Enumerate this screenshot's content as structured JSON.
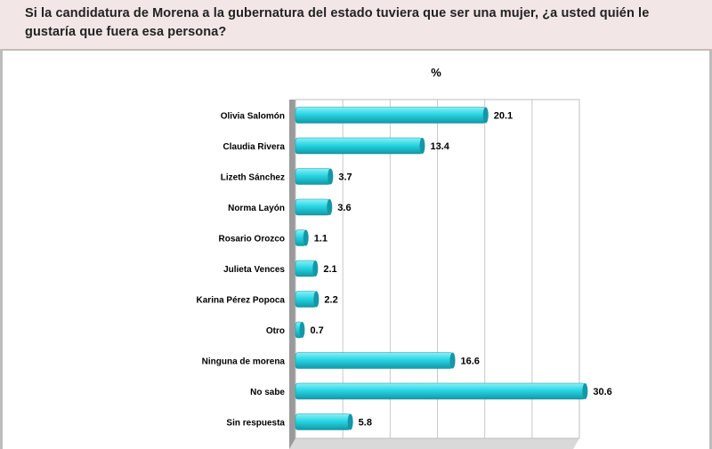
{
  "header": {
    "question": "Si la candidatura de Morena a la gubernatura del estado tuviera que ser una mujer, ¿a usted quién le gustaría que fuera esa persona?"
  },
  "chart_data": {
    "type": "bar",
    "orientation": "horizontal",
    "unit_label": "%",
    "categories": [
      "Olivia Salomón",
      "Claudia Rivera",
      "Lizeth Sánchez",
      "Norma Layón",
      "Rosario Orozco",
      "Julieta Vences",
      "Karina Pérez Popoca",
      "Otro",
      "Ninguna de morena",
      "No sabe",
      "Sin respuesta"
    ],
    "values": [
      20.1,
      13.4,
      3.7,
      3.6,
      1.1,
      2.1,
      2.2,
      0.7,
      16.6,
      30.6,
      5.8
    ],
    "value_labels": [
      "20.1",
      "13.4",
      "3.7",
      "3.6",
      "1.1",
      "2.1",
      "2.2",
      "0.7",
      "16.6",
      "30.6",
      "5.8"
    ],
    "xlim": [
      0,
      30
    ],
    "xticks": [
      "0",
      "5",
      "10",
      "15",
      "20",
      "25",
      "30"
    ],
    "grid": true,
    "colors": {
      "bar": "#27d6e3",
      "bar_dark": "#1497a6",
      "bar_light": "#8df0f7",
      "floor": "#9a9a9a",
      "grid": "#c8c8c8"
    }
  }
}
